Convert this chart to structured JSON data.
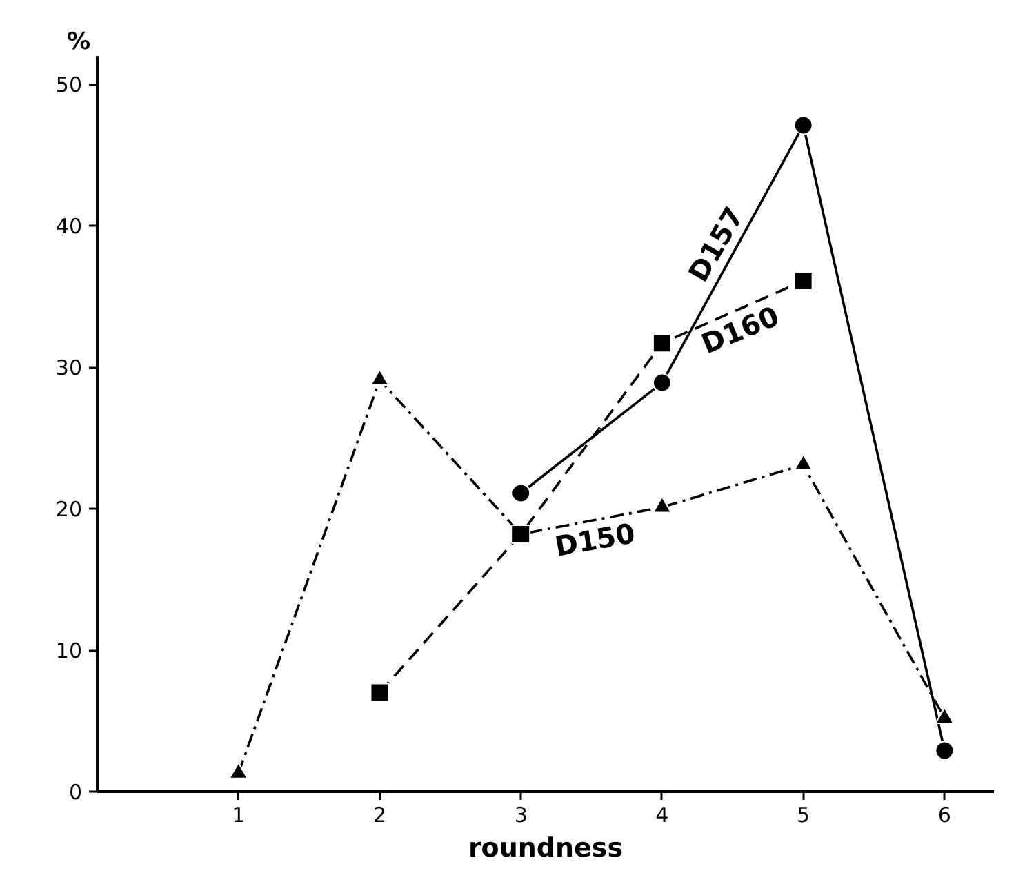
{
  "chart_data": {
    "type": "line",
    "xlabel": "roundness",
    "ylabel": "%",
    "xlim": [
      0,
      6.35
    ],
    "ylim": [
      0,
      52
    ],
    "xticks": [
      1,
      2,
      3,
      4,
      5,
      6
    ],
    "yticks": [
      0,
      10,
      20,
      30,
      40,
      50
    ],
    "grid": false,
    "series": [
      {
        "name": "D157",
        "color": "#000000",
        "x": [
          3,
          4,
          5,
          6
        ],
        "values": [
          21.1,
          28.9,
          47.1,
          2.9
        ],
        "marker": "circle",
        "line_style": "solid"
      },
      {
        "name": "D160",
        "color": "#000000",
        "x": [
          2,
          3,
          4,
          5
        ],
        "values": [
          7.0,
          18.2,
          31.7,
          36.1
        ],
        "marker": "square",
        "line_style": "dashed"
      },
      {
        "name": "D150",
        "color": "#000000",
        "x": [
          1,
          2,
          3,
          4,
          5,
          6
        ],
        "values": [
          1.3,
          29.1,
          18.2,
          20.1,
          23.1,
          5.2
        ],
        "marker": "triangle",
        "line_style": "dashdot"
      }
    ]
  }
}
